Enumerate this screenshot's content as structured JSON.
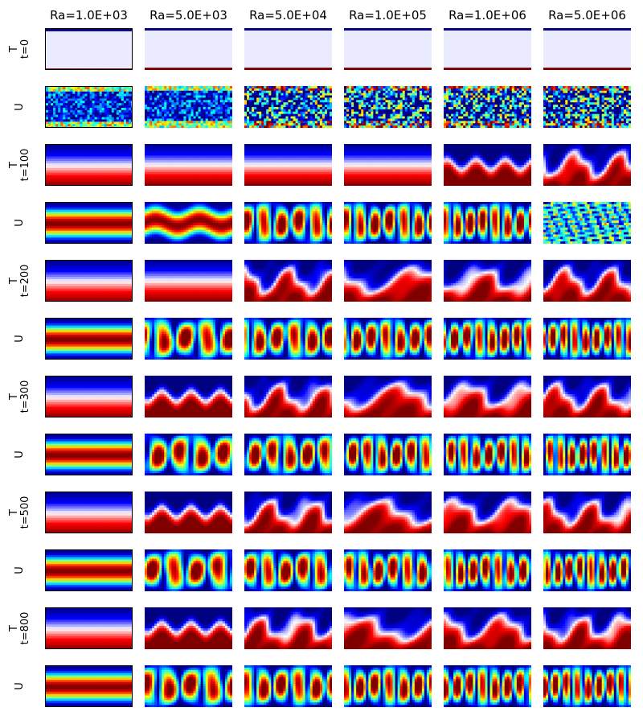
{
  "chart_data": {
    "type": "heatmap",
    "title": "",
    "columns": [
      "Ra=1.0E+03",
      "Ra=5.0E+03",
      "Ra=5.0E+04",
      "Ra=1.0E+05",
      "Ra=1.0E+06",
      "Ra=5.0E+06"
    ],
    "rows": [
      {
        "field": "T",
        "time": "t=0",
        "kinds": [
          "t0",
          "t0",
          "t0",
          "t0",
          "t0",
          "t0"
        ]
      },
      {
        "field": "U",
        "time": "",
        "kinds": [
          "noise",
          "noise",
          "noise",
          "noise",
          "noise",
          "noise"
        ]
      },
      {
        "field": "T",
        "time": "t=100",
        "kinds": [
          "cond",
          "cond",
          "cond",
          "cond",
          "wavy",
          "plume"
        ]
      },
      {
        "field": "U",
        "time": "",
        "kinds": [
          "bands",
          "bandsWavy",
          "cells",
          "cells",
          "cells",
          "turb"
        ]
      },
      {
        "field": "T",
        "time": "t=200",
        "kinds": [
          "cond",
          "cond",
          "plume",
          "plume",
          "plume",
          "plume"
        ]
      },
      {
        "field": "U",
        "time": "",
        "kinds": [
          "bands",
          "cells",
          "cells",
          "cells",
          "cells",
          "cells"
        ]
      },
      {
        "field": "T",
        "time": "t=300",
        "kinds": [
          "cond",
          "wavy",
          "plume",
          "plume",
          "plume",
          "plume"
        ]
      },
      {
        "field": "U",
        "time": "",
        "kinds": [
          "bands",
          "cells",
          "cells",
          "cells",
          "cells",
          "cells"
        ]
      },
      {
        "field": "T",
        "time": "t=500",
        "kinds": [
          "cond",
          "wavy",
          "plume",
          "plume",
          "plume",
          "plume"
        ]
      },
      {
        "field": "U",
        "time": "",
        "kinds": [
          "bands",
          "cells",
          "cells",
          "cells",
          "cells",
          "cells"
        ]
      },
      {
        "field": "T",
        "time": "t=800",
        "kinds": [
          "cond",
          "wavy",
          "plume",
          "plume",
          "plume",
          "plume"
        ]
      },
      {
        "field": "U",
        "time": "",
        "kinds": [
          "bands",
          "cells",
          "cells",
          "cells",
          "cells",
          "cells"
        ]
      }
    ],
    "colormaps": {
      "T": "seismic",
      "U": "jet"
    },
    "grid": false,
    "legend": "none"
  }
}
